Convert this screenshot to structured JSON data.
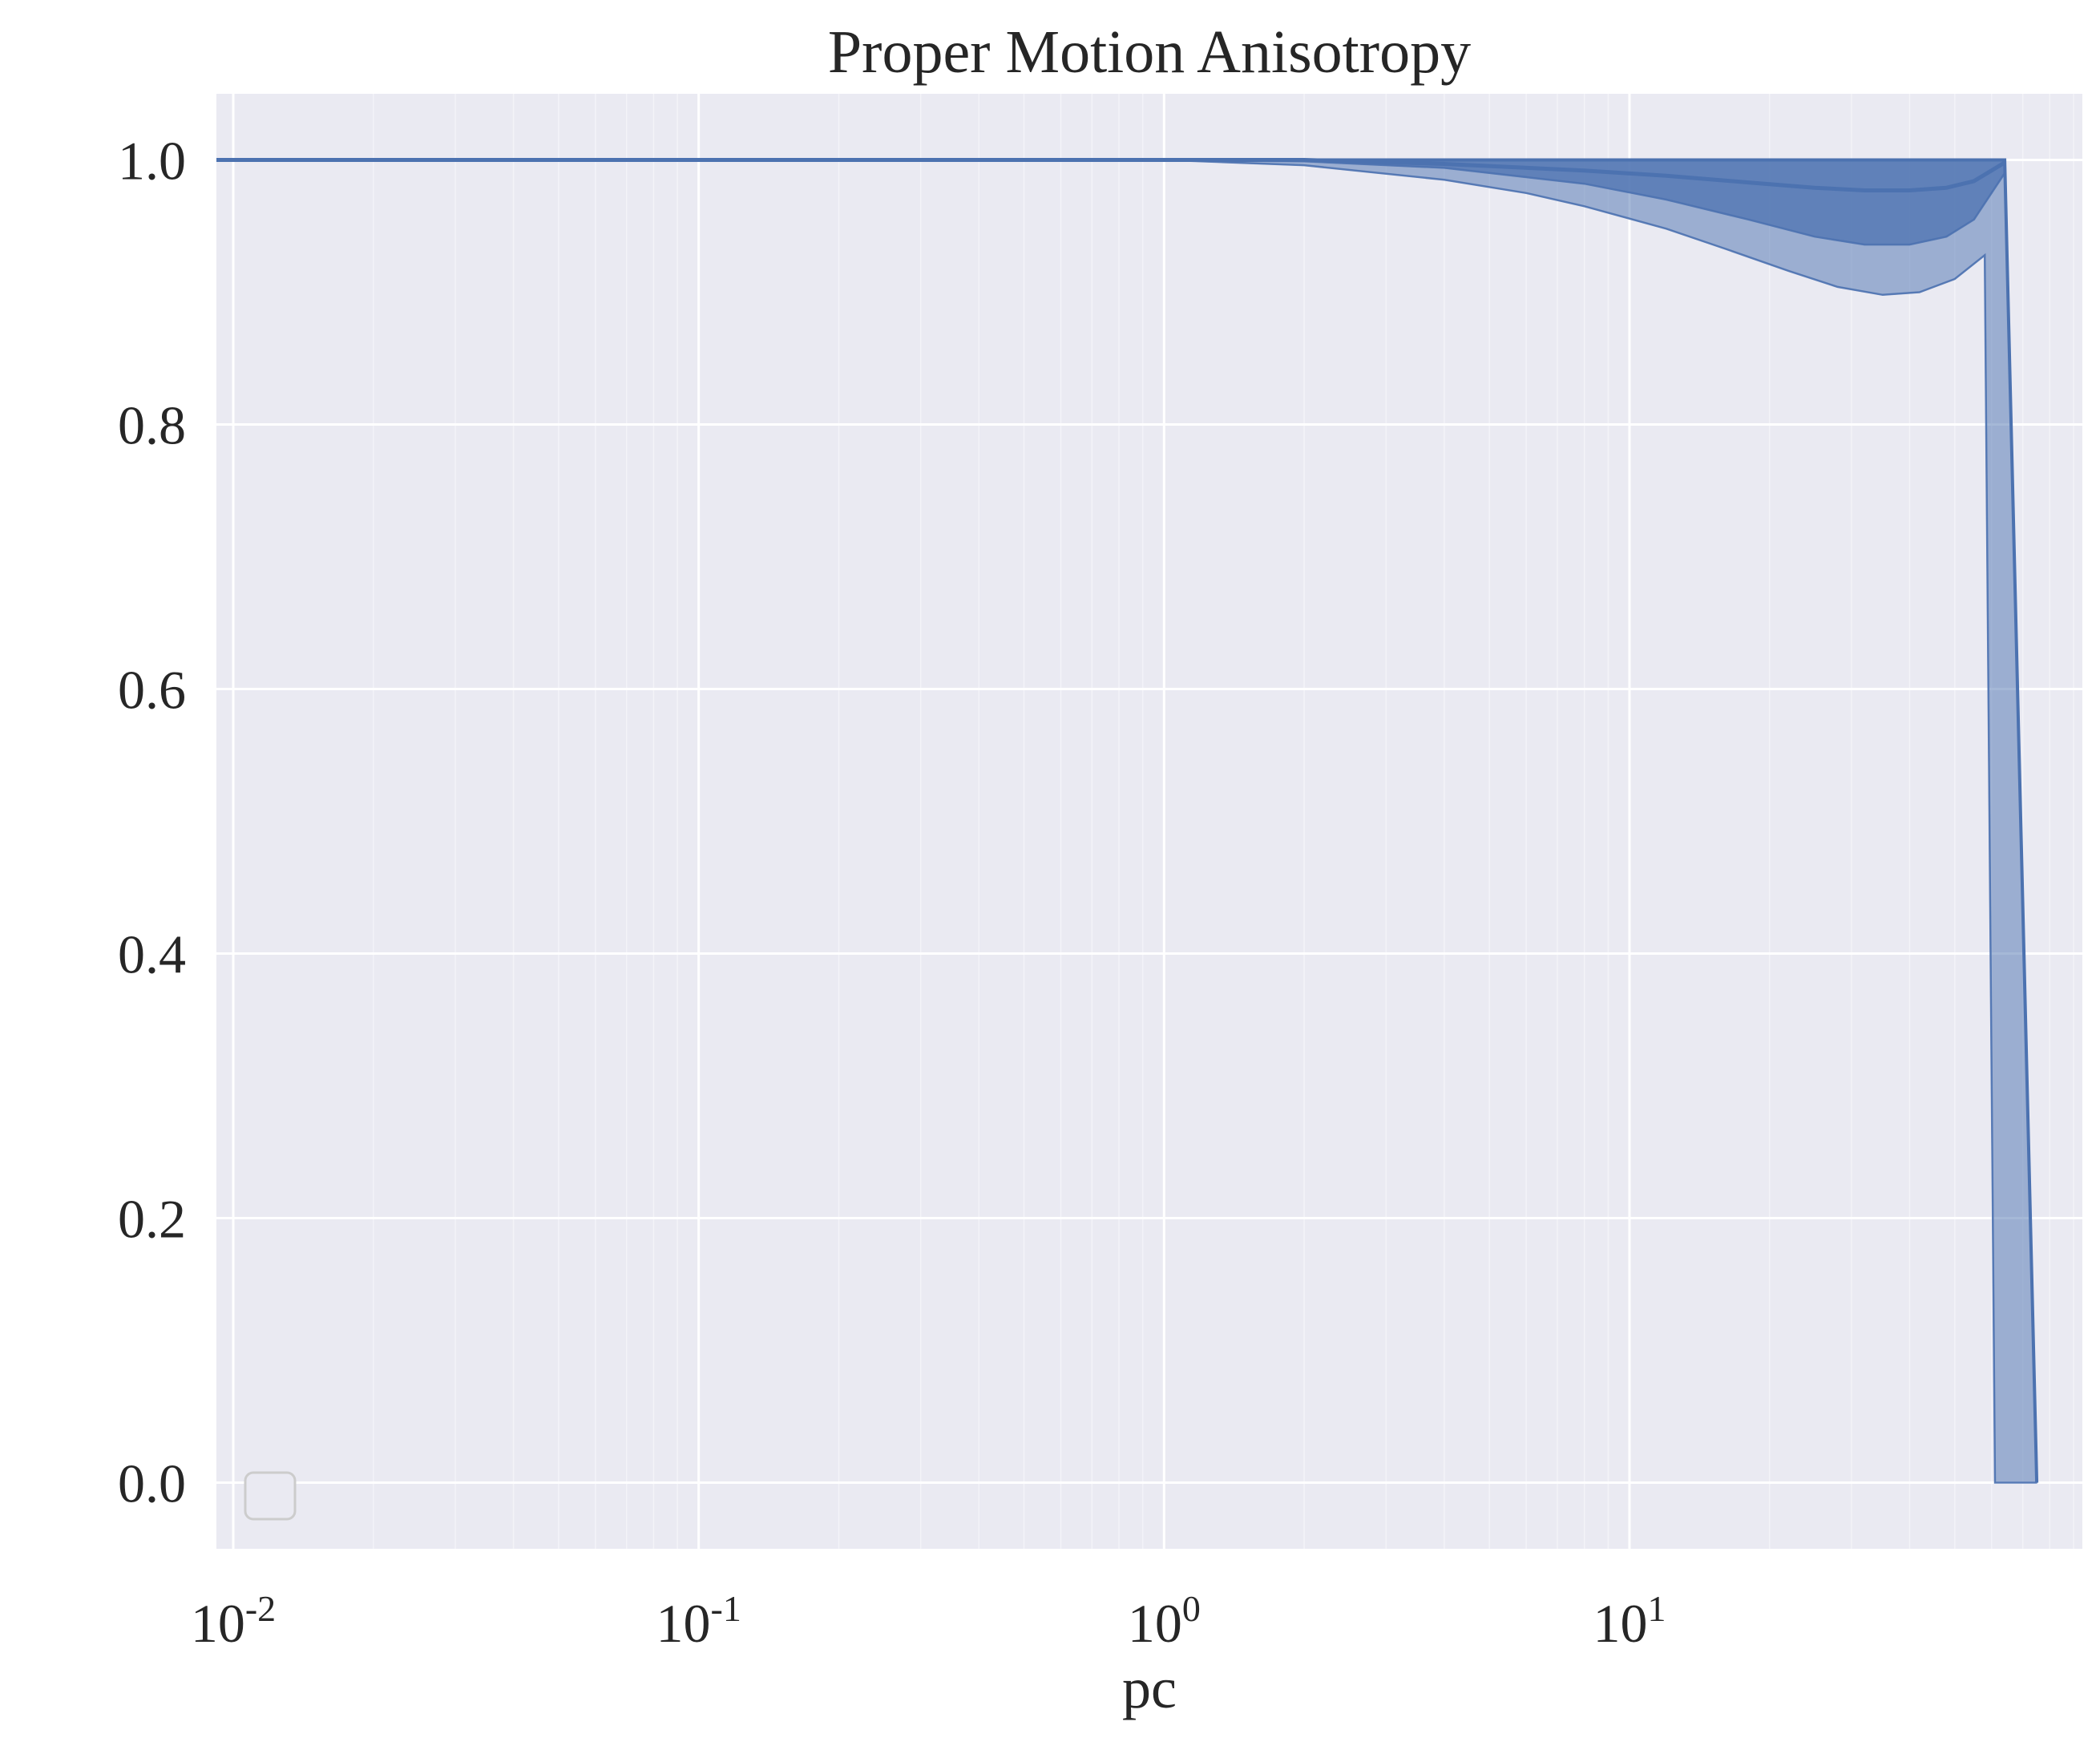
{
  "chart_data": {
    "type": "line",
    "title": "Proper Motion Anisotropy",
    "xlabel": "pc",
    "ylabel": "",
    "xscale": "log",
    "xlim": [
      0.0092,
      94
    ],
    "ylim": [
      -0.05,
      1.05
    ],
    "grid": true,
    "legend": "lower-left (empty)",
    "x_ticks": [
      {
        "value": 0.01,
        "base": "10",
        "exp": "-2"
      },
      {
        "value": 0.1,
        "base": "10",
        "exp": "-1"
      },
      {
        "value": 1,
        "base": "10",
        "exp": "0"
      },
      {
        "value": 10,
        "base": "10",
        "exp": "1"
      }
    ],
    "y_ticks": [
      {
        "value": 0.0,
        "label": "0.0"
      },
      {
        "value": 0.2,
        "label": "0.2"
      },
      {
        "value": 0.4,
        "label": "0.4"
      },
      {
        "value": 0.6,
        "label": "0.6"
      },
      {
        "value": 0.8,
        "label": "0.8"
      },
      {
        "value": 1.0,
        "label": "1.0"
      }
    ],
    "colors": {
      "line": "#4c72b0",
      "plot_background": "#eaeaf2",
      "grid": "#ffffff",
      "text": "#262626"
    },
    "series": [
      {
        "role": "median",
        "x": [
          0.0092,
          0.1,
          1.0,
          2.0,
          4.0,
          8.0,
          12.0,
          18.0,
          25.0,
          32.0,
          40.0,
          48.0,
          55.0,
          64.0
        ],
        "values": [
          1.0,
          1.0,
          1.0,
          1.0,
          0.997,
          0.992,
          0.988,
          0.983,
          0.979,
          0.977,
          0.977,
          0.979,
          0.984,
          0.998
        ]
      }
    ],
    "bands": [
      {
        "role": "inner",
        "x": [
          0.0092,
          0.1,
          1.0,
          2.0,
          4.0,
          8.0,
          12.0,
          18.0,
          25.0,
          32.0,
          40.0,
          48.0,
          55.0,
          64.0
        ],
        "upper": [
          1.0,
          1.0,
          1.0,
          1.0,
          1.0,
          1.0,
          1.0,
          1.0,
          1.0,
          1.0,
          1.0,
          1.0,
          1.0,
          1.0
        ],
        "lower": [
          1.0,
          1.0,
          1.0,
          0.999,
          0.994,
          0.982,
          0.97,
          0.955,
          0.942,
          0.936,
          0.936,
          0.942,
          0.955,
          0.99
        ]
      },
      {
        "role": "outer",
        "x": [
          0.0092,
          0.1,
          1.0,
          2.0,
          4.0,
          6.0,
          8.0,
          12.0,
          16.0,
          22.0,
          28.0,
          35.0,
          42.0,
          50.0,
          58.0,
          61.0,
          64.0,
          75.0
        ],
        "upper": [
          1.0,
          1.0,
          1.0,
          1.0,
          1.0,
          1.0,
          1.0,
          1.0,
          1.0,
          1.0,
          1.0,
          1.0,
          1.0,
          1.0,
          1.0,
          1.0,
          1.0,
          0.0
        ],
        "lower": [
          1.0,
          1.0,
          1.0,
          0.996,
          0.985,
          0.975,
          0.965,
          0.948,
          0.933,
          0.916,
          0.904,
          0.898,
          0.9,
          0.91,
          0.928,
          0.0,
          0.0,
          0.0
        ]
      }
    ]
  }
}
